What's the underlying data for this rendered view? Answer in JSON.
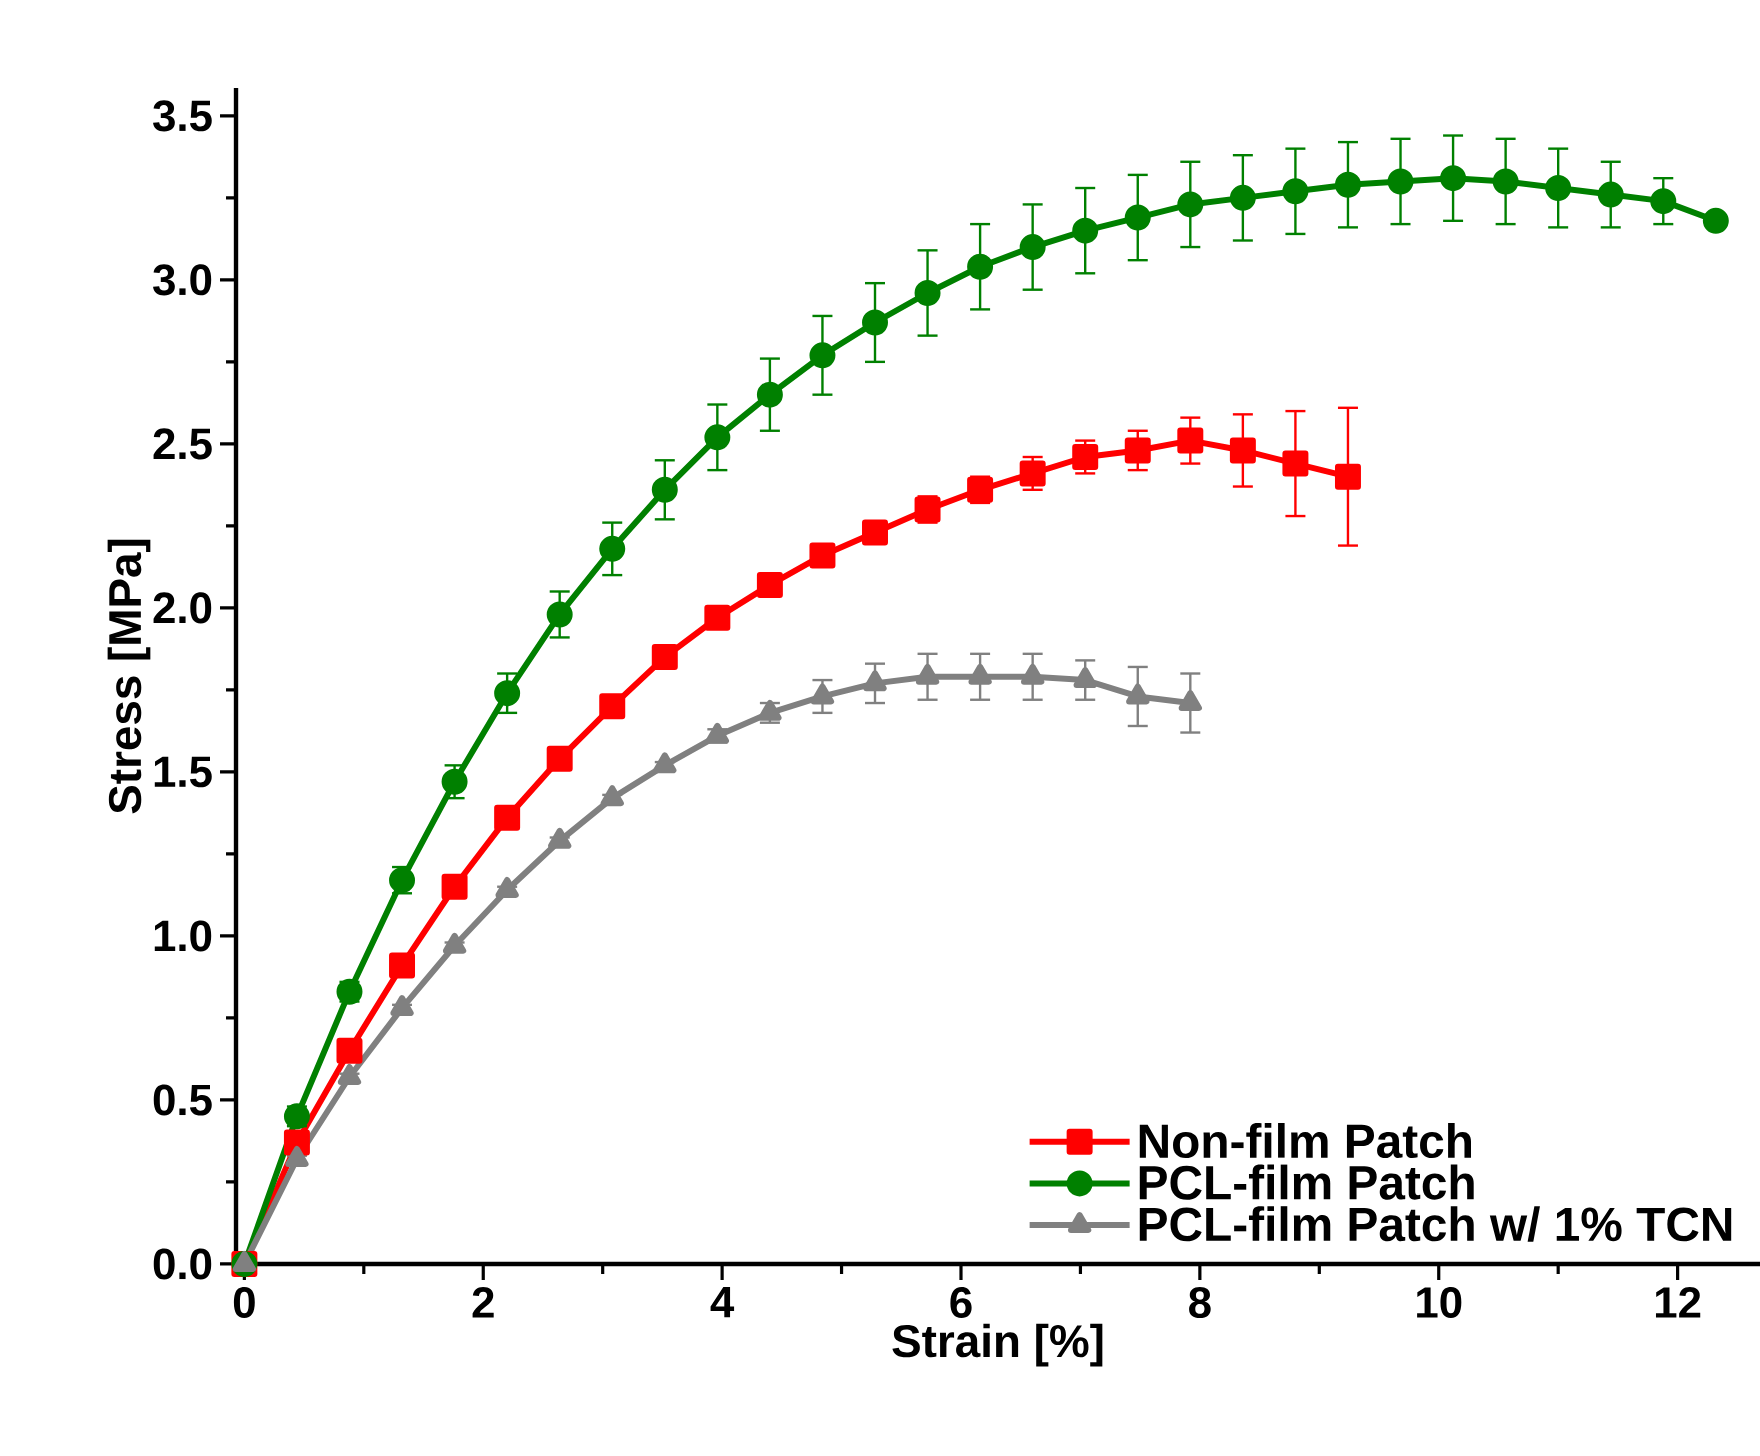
{
  "chart_data": {
    "type": "line",
    "xlabel": "Strain [%]",
    "ylabel": "Stress [MPa]",
    "xlim": [
      -0.07,
      12.69
    ],
    "ylim": [
      0,
      3.585
    ],
    "xticks": [
      0,
      2,
      4,
      6,
      8,
      10,
      12
    ],
    "yticks": [
      {
        "value": 0,
        "label": "0.0"
      },
      {
        "value": 0.5,
        "label": "0.5"
      },
      {
        "value": 1,
        "label": "1.0"
      },
      {
        "value": 1.5,
        "label": "1.5"
      },
      {
        "value": 2,
        "label": "2.0"
      },
      {
        "value": 2.5,
        "label": "2.5"
      },
      {
        "value": 3,
        "label": "3.0"
      },
      {
        "value": 3.5,
        "label": "3.5"
      }
    ],
    "legend": "bottom right",
    "line_style": "solid",
    "series": [
      {
        "name": "Non-film Patch",
        "color": "#ff0000",
        "marker": "square",
        "x": [
          0,
          0.44,
          0.88,
          1.32,
          1.76,
          2.2,
          2.64,
          3.08,
          3.52,
          3.96,
          4.4,
          4.84,
          5.28,
          5.72,
          6.16,
          6.6,
          7.04,
          7.48,
          7.92,
          8.36,
          8.8,
          9.24
        ],
        "values": [
          0,
          0.37,
          0.65,
          0.91,
          1.15,
          1.36,
          1.54,
          1.7,
          1.85,
          1.97,
          2.07,
          2.16,
          2.23,
          2.3,
          2.36,
          2.41,
          2.46,
          2.48,
          2.51,
          2.48,
          2.44,
          2.4
        ],
        "errors": [
          0,
          0.01,
          0.01,
          0.01,
          0.01,
          0.01,
          0.01,
          0.01,
          0.01,
          0.01,
          0.02,
          0.02,
          0.03,
          0.04,
          0.04,
          0.05,
          0.05,
          0.06,
          0.07,
          0.11,
          0.16,
          0.21
        ]
      },
      {
        "name": "PCL-film Patch",
        "color": "#008000",
        "marker": "circle",
        "x": [
          0,
          0.44,
          0.88,
          1.32,
          1.76,
          2.2,
          2.64,
          3.08,
          3.52,
          3.96,
          4.4,
          4.84,
          5.28,
          5.72,
          6.16,
          6.6,
          7.04,
          7.48,
          7.92,
          8.36,
          8.8,
          9.24,
          9.68,
          10.12,
          10.56,
          11.0,
          11.44,
          11.88,
          12.32
        ],
        "values": [
          0,
          0.45,
          0.83,
          1.17,
          1.47,
          1.74,
          1.98,
          2.18,
          2.36,
          2.52,
          2.65,
          2.77,
          2.87,
          2.96,
          3.04,
          3.1,
          3.15,
          3.19,
          3.23,
          3.25,
          3.27,
          3.29,
          3.3,
          3.31,
          3.3,
          3.28,
          3.26,
          3.24,
          3.18
        ],
        "errors": [
          0,
          0.03,
          0.03,
          0.04,
          0.05,
          0.06,
          0.07,
          0.08,
          0.09,
          0.1,
          0.11,
          0.12,
          0.12,
          0.13,
          0.13,
          0.13,
          0.13,
          0.13,
          0.13,
          0.13,
          0.13,
          0.13,
          0.13,
          0.13,
          0.13,
          0.12,
          0.1,
          0.07,
          0.02
        ]
      },
      {
        "name": "PCL-film Patch w/ 1% TCN",
        "color": "#808080",
        "marker": "triangle",
        "x": [
          0,
          0.44,
          0.88,
          1.32,
          1.76,
          2.2,
          2.64,
          3.08,
          3.52,
          3.96,
          4.4,
          4.84,
          5.28,
          5.72,
          6.16,
          6.6,
          7.04,
          7.48,
          7.92
        ],
        "values": [
          0,
          0.32,
          0.57,
          0.78,
          0.97,
          1.14,
          1.29,
          1.42,
          1.52,
          1.61,
          1.68,
          1.73,
          1.77,
          1.79,
          1.79,
          1.79,
          1.78,
          1.73,
          1.71
        ],
        "errors": [
          0,
          0.01,
          0.01,
          0.01,
          0.01,
          0.01,
          0.01,
          0.01,
          0.01,
          0.02,
          0.03,
          0.05,
          0.06,
          0.07,
          0.07,
          0.07,
          0.06,
          0.09,
          0.09
        ]
      }
    ]
  }
}
